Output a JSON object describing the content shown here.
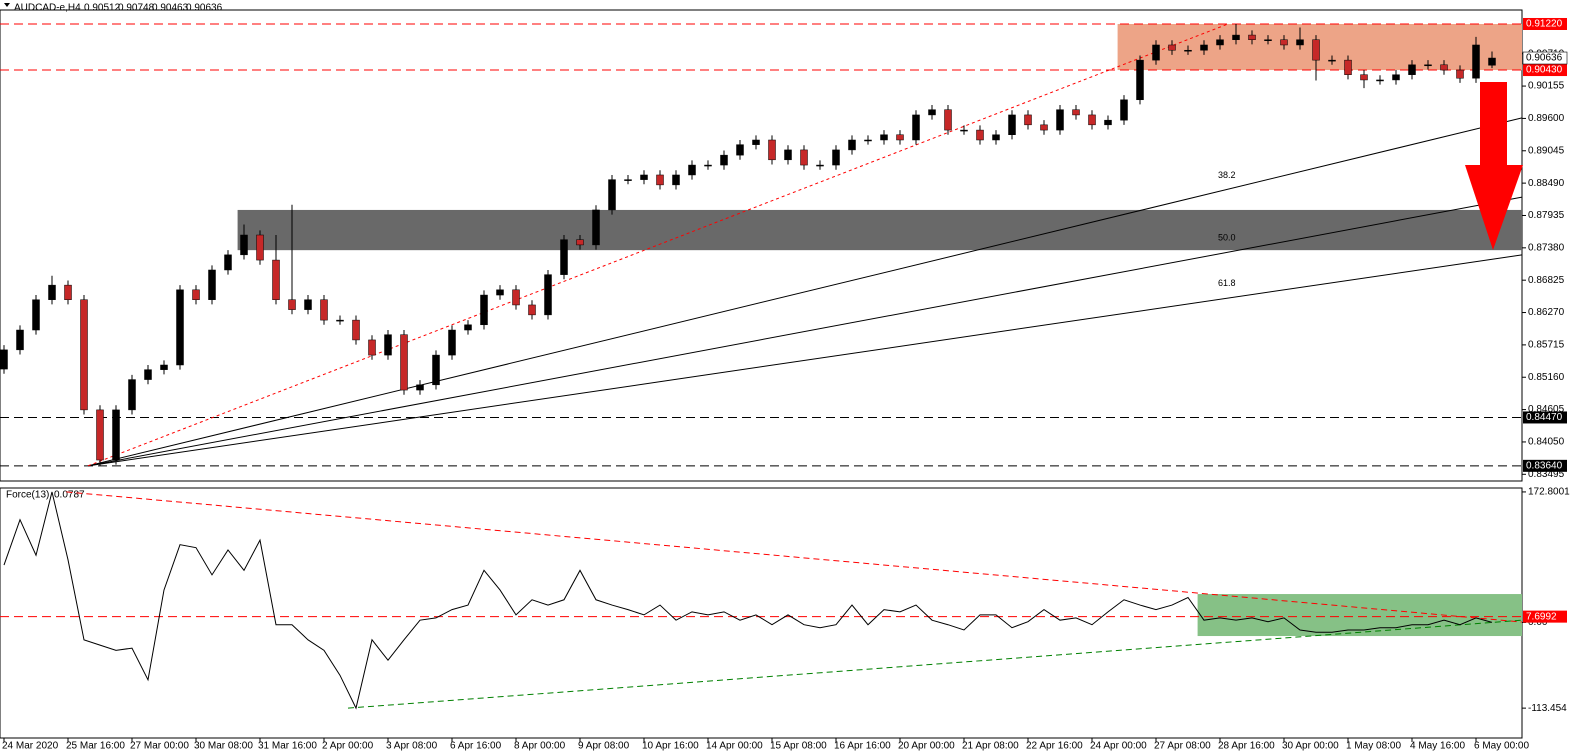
{
  "chart_data": [
    {
      "type": "candlestick",
      "name": "AUDCAD-e,H4",
      "open": [
        0.853,
        0.8563,
        0.8597,
        0.8649,
        0.8674,
        0.8649,
        0.846,
        0.8374,
        0.846,
        0.8512,
        0.8529,
        0.8537,
        0.8666,
        0.8649,
        0.87,
        0.8726,
        0.876,
        0.8717,
        0.8649,
        0.8632,
        0.8649,
        0.8614,
        0.8614,
        0.858,
        0.8554,
        0.8589,
        0.8494,
        0.8503,
        0.8554,
        0.8597,
        0.8606,
        0.8657,
        0.8666,
        0.864,
        0.8623,
        0.8692,
        0.8752,
        0.8743,
        0.8803,
        0.8855,
        0.8855,
        0.8863,
        0.8846,
        0.8863,
        0.888,
        0.888,
        0.8897,
        0.8915,
        0.8923,
        0.8889,
        0.8906,
        0.888,
        0.888,
        0.8906,
        0.8923,
        0.8923,
        0.8932,
        0.8923,
        0.8966,
        0.8975,
        0.894,
        0.894,
        0.8923,
        0.8932,
        0.8966,
        0.8949,
        0.894,
        0.8975,
        0.8966,
        0.8949,
        0.8957,
        0.8992,
        0.906,
        0.9086,
        0.9077,
        0.9077,
        0.9086,
        0.9095,
        0.9103,
        0.9095,
        0.9095,
        0.9086,
        0.9095,
        0.906,
        0.906,
        0.9035,
        0.9026,
        0.9026,
        0.9035,
        0.9052,
        0.9052,
        0.9043,
        0.9029,
        0.90512
      ],
      "high": [
        0.8571,
        0.8605,
        0.8657,
        0.869,
        0.8682,
        0.8657,
        0.8468,
        0.8468,
        0.852,
        0.8537,
        0.8545,
        0.8674,
        0.8674,
        0.8708,
        0.8734,
        0.8778,
        0.8768,
        0.876,
        0.8812,
        0.8657,
        0.8657,
        0.8622,
        0.8622,
        0.8588,
        0.8597,
        0.8597,
        0.8511,
        0.8562,
        0.8605,
        0.8614,
        0.8665,
        0.8674,
        0.8674,
        0.8648,
        0.87,
        0.876,
        0.876,
        0.8811,
        0.8863,
        0.8863,
        0.8871,
        0.8871,
        0.8871,
        0.8888,
        0.8888,
        0.8905,
        0.8923,
        0.8931,
        0.8931,
        0.8914,
        0.8914,
        0.8888,
        0.8914,
        0.8931,
        0.8931,
        0.894,
        0.894,
        0.8974,
        0.8983,
        0.8983,
        0.8948,
        0.8948,
        0.894,
        0.8974,
        0.8974,
        0.8957,
        0.8983,
        0.8983,
        0.8974,
        0.8965,
        0.9,
        0.9068,
        0.9094,
        0.9094,
        0.9085,
        0.9094,
        0.9103,
        0.9122,
        0.9111,
        0.9103,
        0.9103,
        0.9116,
        0.9103,
        0.9068,
        0.9068,
        0.9043,
        0.9034,
        0.9043,
        0.906,
        0.906,
        0.906,
        0.9051,
        0.91,
        0.90748
      ],
      "low": [
        0.8522,
        0.8555,
        0.8589,
        0.8641,
        0.8641,
        0.8452,
        0.8364,
        0.8366,
        0.8452,
        0.8504,
        0.8521,
        0.8529,
        0.8641,
        0.8641,
        0.8692,
        0.8718,
        0.8709,
        0.8641,
        0.8624,
        0.8624,
        0.8606,
        0.8606,
        0.8572,
        0.8546,
        0.8546,
        0.8486,
        0.8486,
        0.8495,
        0.8546,
        0.8589,
        0.8598,
        0.8649,
        0.8632,
        0.8615,
        0.8615,
        0.8684,
        0.8735,
        0.8735,
        0.8795,
        0.8847,
        0.8847,
        0.8838,
        0.8838,
        0.8855,
        0.8872,
        0.8872,
        0.8889,
        0.8907,
        0.8881,
        0.8881,
        0.8872,
        0.8872,
        0.8872,
        0.8898,
        0.8915,
        0.8915,
        0.8915,
        0.8915,
        0.8958,
        0.8932,
        0.8932,
        0.8915,
        0.8915,
        0.8924,
        0.8941,
        0.8932,
        0.8932,
        0.8958,
        0.8941,
        0.8941,
        0.8949,
        0.8984,
        0.9052,
        0.9069,
        0.9069,
        0.9069,
        0.9078,
        0.9087,
        0.9087,
        0.9087,
        0.9078,
        0.9078,
        0.9025,
        0.9052,
        0.9027,
        0.9012,
        0.9018,
        0.9018,
        0.9027,
        0.9044,
        0.9035,
        0.9021,
        0.9021,
        0.90463
      ],
      "close": [
        0.8563,
        0.8597,
        0.8649,
        0.8674,
        0.8649,
        0.846,
        0.8374,
        0.846,
        0.8512,
        0.8529,
        0.8537,
        0.8666,
        0.8649,
        0.87,
        0.8726,
        0.876,
        0.8717,
        0.8649,
        0.8632,
        0.8649,
        0.8614,
        0.8614,
        0.858,
        0.8554,
        0.8589,
        0.8494,
        0.8503,
        0.8554,
        0.8597,
        0.8606,
        0.8657,
        0.8666,
        0.864,
        0.8623,
        0.8692,
        0.8752,
        0.8743,
        0.8803,
        0.8855,
        0.8855,
        0.8863,
        0.8846,
        0.8863,
        0.888,
        0.888,
        0.8897,
        0.8915,
        0.8923,
        0.8889,
        0.8906,
        0.888,
        0.888,
        0.8906,
        0.8923,
        0.8923,
        0.8932,
        0.8923,
        0.8966,
        0.8975,
        0.894,
        0.894,
        0.8923,
        0.8932,
        0.8966,
        0.8949,
        0.894,
        0.8975,
        0.8966,
        0.8949,
        0.8957,
        0.8992,
        0.906,
        0.9086,
        0.9077,
        0.9077,
        0.9086,
        0.9095,
        0.9103,
        0.9095,
        0.9095,
        0.9086,
        0.9095,
        0.906,
        0.906,
        0.9035,
        0.9026,
        0.9026,
        0.9035,
        0.9052,
        0.9052,
        0.9043,
        0.9029,
        0.9086,
        0.90636
      ],
      "up_color": "#000000",
      "down_color": "#c62828",
      "xlim": [
        -0.25,
        94.875
      ],
      "ylim": [
        0.8338,
        0.9146
      ],
      "yticks": [
        0.83495,
        {
          "value": 0.8405,
          "label": "0.84050"
        },
        0.84605,
        {
          "value": 0.8516,
          "label": "0.85160"
        },
        0.85715,
        {
          "value": 0.8627,
          "label": "0.86270"
        },
        0.86825,
        {
          "value": 0.8738,
          "label": "0.87380"
        },
        0.87935,
        {
          "value": 0.8849,
          "label": "0.88490"
        },
        0.89045,
        {
          "value": 0.896,
          "label": "0.89600"
        },
        0.90155,
        {
          "value": 0.9071,
          "label": "0.90710"
        }
      ],
      "levels": [
        {
          "value": 0.9122,
          "label": "0.91220",
          "color": "#ff0000"
        },
        {
          "value": 0.9043,
          "label": "0.90430",
          "color": "#ff0000"
        },
        {
          "value": 0.8447,
          "label": "0.84470",
          "color": "#000000"
        },
        {
          "value": 0.8364,
          "label": "0.83640",
          "color": "#000000"
        }
      ],
      "zones": [
        {
          "x": [
            69.6,
            94.875
          ],
          "y": [
            0.9043,
            0.9122
          ],
          "color": "#eda487"
        },
        {
          "x": [
            14.6,
            94.875
          ],
          "y": [
            0.8734,
            0.8803
          ],
          "color": "#696969"
        }
      ],
      "trend": {
        "x": [
          5.25,
          76.5
        ],
        "y": [
          0.8364,
          0.9122
        ],
        "color": "#ff0000"
      },
      "fan": {
        "origin": [
          5.25,
          0.8364
        ],
        "lines": [
          {
            "label": "38.2",
            "end": 0.8961
          },
          {
            "label": "50.0",
            "end": 0.8825
          },
          {
            "label": "61.8",
            "end": 0.8726
          }
        ]
      }
    },
    {
      "type": "line",
      "name": "Force(13)",
      "color": "#000000",
      "values": [
        76,
        136,
        89,
        172.8001,
        83,
        -23,
        -30,
        -37,
        -34,
        -76,
        43,
        103,
        99,
        63,
        96,
        69,
        109,
        -3,
        -3,
        -23,
        -37,
        -70,
        -113.454,
        -23,
        -50,
        -23,
        3,
        6,
        17,
        23,
        69,
        43,
        10,
        30,
        23,
        30,
        69,
        30,
        23,
        17,
        10,
        23,
        3,
        14,
        10,
        14,
        3,
        10,
        -3,
        10,
        -3,
        -7,
        -3,
        23,
        -3,
        17,
        14,
        23,
        3,
        -3,
        -10,
        10,
        10,
        -7,
        1,
        17,
        3,
        6,
        -3,
        14,
        30,
        23,
        17,
        23,
        33,
        3,
        6,
        3,
        6,
        1,
        6,
        -10,
        -13,
        -13,
        -10,
        -10,
        -7,
        -7,
        -3,
        -3,
        3,
        -3,
        6,
        0.0787
      ],
      "xlim": [
        -0.25,
        94.875
      ],
      "ylim": [
        -153,
        178
      ],
      "yticks": [
        172.8001,
        {
          "value": 0,
          "label": "0.00"
        },
        -113.454
      ],
      "xticks": [
        {
          "value": 0,
          "label": "24 Mar 2020"
        },
        {
          "value": 4,
          "label": "25 Mar 16:00"
        },
        {
          "value": 8,
          "label": "27 Mar 00:00"
        },
        {
          "value": 12,
          "label": "30 Mar 08:00"
        },
        {
          "value": 16,
          "label": "31 Mar 16:00"
        },
        {
          "value": 20,
          "label": "2 Apr 00:00"
        },
        {
          "value": 24,
          "label": "3 Apr 08:00"
        },
        {
          "value": 28,
          "label": "6 Apr 16:00"
        },
        {
          "value": 32,
          "label": "8 Apr 00:00"
        },
        {
          "value": 36,
          "label": "9 Apr 08:00"
        },
        {
          "value": 40,
          "label": "10 Apr 16:00"
        },
        {
          "value": 44,
          "label": "14 Apr 00:00"
        },
        {
          "value": 48,
          "label": "15 Apr 08:00"
        },
        {
          "value": 52,
          "label": "16 Apr 16:00"
        },
        {
          "value": 56,
          "label": "20 Apr 00:00"
        },
        {
          "value": 60,
          "label": "21 Apr 08:00"
        },
        {
          "value": 64,
          "label": "22 Apr 16:00"
        },
        {
          "value": 68,
          "label": "24 Apr 00:00"
        },
        {
          "value": 72,
          "label": "27 Apr 08:00"
        },
        {
          "value": 76,
          "label": "28 Apr 16:00"
        },
        {
          "value": 80,
          "label": "30 Apr 00:00"
        },
        {
          "value": 84,
          "label": "1 May 08:00"
        },
        {
          "value": 88,
          "label": "4 May 16:00"
        },
        {
          "value": 92,
          "label": "6 May 00:00"
        }
      ],
      "level": {
        "value": 7.6992,
        "color": "#ff0000"
      },
      "trendlines": [
        {
          "x": [
            3.9,
            94.875
          ],
          "y": [
            172.8001,
            0.5
          ],
          "color": "#ff0000"
        },
        {
          "x": [
            21.5,
            94.875
          ],
          "y": [
            -113.454,
            3
          ],
          "color": "#008000"
        }
      ],
      "zone": {
        "x": [
          74.6,
          94.875
        ],
        "y": [
          -18,
          37.6
        ],
        "color": "#86c186"
      }
    }
  ]
}
